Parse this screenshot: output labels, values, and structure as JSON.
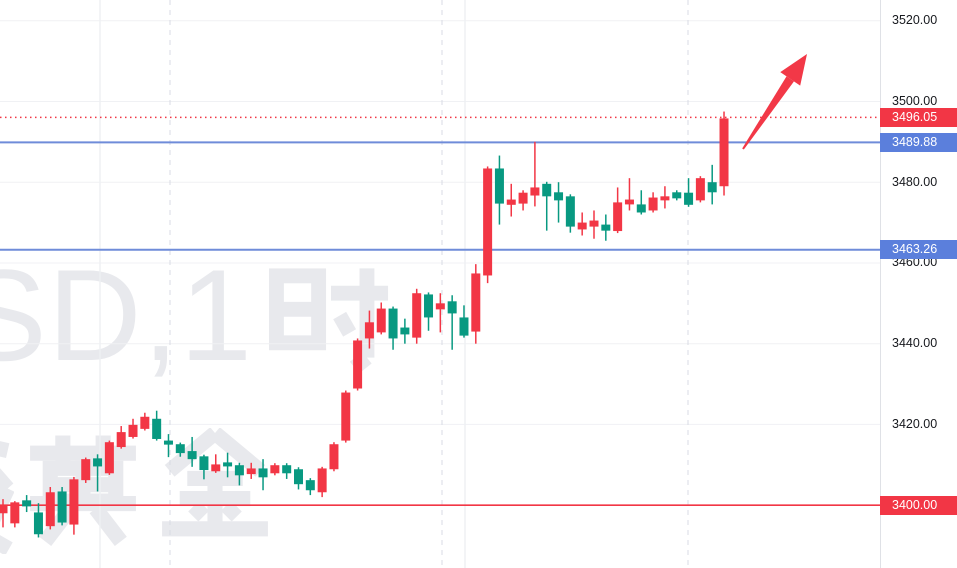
{
  "app_context": "candlestick-price-chart",
  "watermark": {
    "line1": "SD,1时",
    "line2": "货黄金"
  },
  "colors": {
    "bull_candle": "#f23645",
    "bear_candle": "#089981",
    "blue_level_line": "#6f8cd9",
    "blue_badge": "#5b7fdc",
    "red_level_line": "#f23645",
    "red_badge": "#f23645",
    "current_price_line": "#f23645",
    "arrow": "#f23847",
    "grid_horizontal": "#f0f1f4",
    "grid_vertical_solid": "#eef0f3",
    "grid_vertical_dashed": "#d8dbe4",
    "axis_text": "#16181d",
    "watermark_text": "#e8e9ed"
  },
  "y_axis": {
    "top_price": 3525.13,
    "bottom_price": 3384.44,
    "ticks": [
      "3520.00",
      "3500.00",
      "3480.00",
      "3460.00",
      "3440.00",
      "3420.00",
      "3400.00"
    ]
  },
  "price_lines": [
    {
      "name": "current-price-line",
      "price": 3496.05,
      "label": "3496.05",
      "style": "dotted",
      "color_key": "current_price_line",
      "badge": "red"
    },
    {
      "name": "resistance-line-upper",
      "price": 3489.88,
      "label": "3489.88",
      "style": "solid",
      "color_key": "blue_level_line",
      "badge": "blue"
    },
    {
      "name": "support-line-mid",
      "price": 3463.26,
      "label": "3463.26",
      "style": "solid",
      "color_key": "blue_level_line",
      "badge": "blue"
    },
    {
      "name": "support-line-lower",
      "price": 3400.0,
      "label": "3400.00",
      "style": "solid",
      "color_key": "red_level_line",
      "badge": "red"
    }
  ],
  "grid": {
    "solid_vertical_x": [
      100,
      465
    ],
    "dashed_vertical_x": [
      170,
      442,
      688
    ]
  },
  "arrow_annotation": {
    "tail_x": 743,
    "tail_y": 149,
    "tip_x": 807,
    "tip_y": 54
  },
  "chart_data": {
    "type": "candlestick",
    "title": "",
    "xlabel": "",
    "ylabel": "price",
    "ylim": [
      3384.44,
      3525.13
    ],
    "grid": true,
    "legend_position": "none",
    "current_price": 3496.05,
    "marked_levels": [
      3496.05,
      3489.88,
      3463.26,
      3400.0
    ],
    "candles": {
      "columns": [
        "open",
        "high",
        "low",
        "close"
      ],
      "rows": [
        [
          3398.0,
          3401.5,
          3394.5,
          3400.0
        ],
        [
          3395.5,
          3401.0,
          3394.5,
          3400.7
        ],
        [
          3401.2,
          3402.5,
          3398.3,
          3399.7
        ],
        [
          3398.2,
          3400.5,
          3392.0,
          3392.8
        ],
        [
          3394.8,
          3404.5,
          3394.0,
          3403.2
        ],
        [
          3403.4,
          3404.5,
          3395.0,
          3395.7
        ],
        [
          3395.2,
          3407.0,
          3392.7,
          3406.4
        ],
        [
          3406.2,
          3411.8,
          3405.5,
          3411.4
        ],
        [
          3411.6,
          3412.6,
          3403.4,
          3409.6
        ],
        [
          3407.9,
          3416.0,
          3407.5,
          3415.6
        ],
        [
          3414.4,
          3419.6,
          3414.0,
          3418.1
        ],
        [
          3416.9,
          3421.4,
          3416.5,
          3419.9
        ],
        [
          3418.9,
          3422.9,
          3418.5,
          3421.9
        ],
        [
          3421.4,
          3423.4,
          3416.0,
          3416.4
        ],
        [
          3416.0,
          3417.6,
          3411.9,
          3415.0
        ],
        [
          3415.1,
          3415.5,
          3412.0,
          3412.9
        ],
        [
          3413.4,
          3416.9,
          3409.5,
          3411.4
        ],
        [
          3412.1,
          3412.5,
          3406.4,
          3408.7
        ],
        [
          3408.4,
          3412.6,
          3408.0,
          3410.1
        ],
        [
          3410.6,
          3413.0,
          3406.9,
          3409.6
        ],
        [
          3409.9,
          3410.5,
          3404.9,
          3407.4
        ],
        [
          3407.7,
          3410.5,
          3406.5,
          3409.1
        ],
        [
          3409.1,
          3411.4,
          3403.7,
          3406.9
        ],
        [
          3407.9,
          3410.4,
          3407.4,
          3409.9
        ],
        [
          3409.9,
          3410.4,
          3406.5,
          3407.9
        ],
        [
          3408.9,
          3409.4,
          3403.9,
          3405.2
        ],
        [
          3406.2,
          3406.7,
          3402.5,
          3403.7
        ],
        [
          3403.2,
          3409.5,
          3402.0,
          3409.1
        ],
        [
          3408.9,
          3415.6,
          3408.4,
          3415.1
        ],
        [
          3416.0,
          3428.4,
          3415.5,
          3427.9
        ],
        [
          3428.9,
          3441.3,
          3428.4,
          3440.8
        ],
        [
          3441.3,
          3448.2,
          3438.8,
          3445.3
        ],
        [
          3442.8,
          3450.2,
          3442.3,
          3448.7
        ],
        [
          3448.7,
          3449.2,
          3438.5,
          3441.3
        ],
        [
          3444.0,
          3446.2,
          3440.0,
          3442.3
        ],
        [
          3441.5,
          3453.6,
          3440.0,
          3452.5
        ],
        [
          3452.2,
          3452.7,
          3443.2,
          3446.5
        ],
        [
          3448.5,
          3452.5,
          3442.8,
          3450.0
        ],
        [
          3450.5,
          3452.0,
          3438.5,
          3447.5
        ],
        [
          3446.5,
          3449.5,
          3441.5,
          3442.0
        ],
        [
          3443.0,
          3459.7,
          3440.0,
          3457.4
        ],
        [
          3456.9,
          3483.9,
          3455.0,
          3483.4
        ],
        [
          3483.4,
          3486.6,
          3469.5,
          3474.7
        ],
        [
          3474.4,
          3479.6,
          3471.5,
          3475.7
        ],
        [
          3474.7,
          3478.0,
          3473.0,
          3477.4
        ],
        [
          3476.7,
          3490.0,
          3474.0,
          3478.7
        ],
        [
          3479.6,
          3480.1,
          3468.0,
          3476.5
        ],
        [
          3477.5,
          3480.0,
          3470.0,
          3475.5
        ],
        [
          3476.5,
          3477.0,
          3467.5,
          3469.0
        ],
        [
          3468.3,
          3472.5,
          3466.8,
          3470.0
        ],
        [
          3469.0,
          3473.0,
          3466.0,
          3470.5
        ],
        [
          3469.5,
          3472.0,
          3465.5,
          3468.0
        ],
        [
          3467.9,
          3478.7,
          3467.4,
          3475.0
        ],
        [
          3474.5,
          3481.0,
          3473.0,
          3475.7
        ],
        [
          3474.5,
          3478.0,
          3472.0,
          3472.5
        ],
        [
          3473.0,
          3477.5,
          3472.5,
          3476.2
        ],
        [
          3475.5,
          3479.0,
          3473.5,
          3476.5
        ],
        [
          3477.5,
          3478.0,
          3475.5,
          3476.0
        ],
        [
          3477.4,
          3481.0,
          3473.9,
          3474.4
        ],
        [
          3475.5,
          3481.5,
          3475.0,
          3481.0
        ],
        [
          3480.0,
          3484.3,
          3474.5,
          3477.5
        ],
        [
          3479.0,
          3497.5,
          3476.7,
          3495.8
        ]
      ]
    }
  }
}
